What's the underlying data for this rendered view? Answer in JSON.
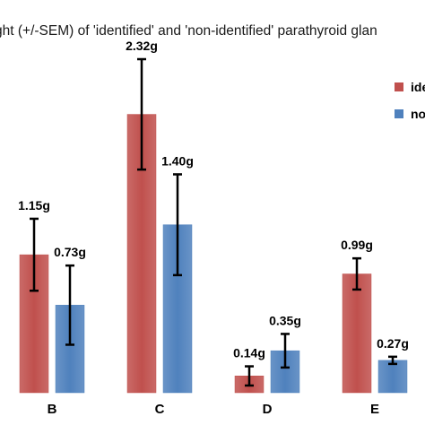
{
  "chart_data": {
    "type": "bar",
    "title": "ght (+/-SEM) of 'identified' and 'non-identified' parathyroid glan",
    "categories": [
      "B",
      "C",
      "D",
      "E"
    ],
    "series": [
      {
        "name": "ide",
        "color": "#c0504d",
        "values": [
          1.15,
          2.32,
          0.14,
          0.99
        ],
        "sem": [
          0.3,
          0.46,
          0.08,
          0.13
        ],
        "labels": [
          "1.15g",
          "2.32g",
          "0.14g",
          "0.99g"
        ]
      },
      {
        "name": "no",
        "color": "#4f81bd",
        "values": [
          0.73,
          1.4,
          0.35,
          0.27
        ],
        "sem": [
          0.33,
          0.42,
          0.14,
          0.03
        ],
        "labels": [
          "0.73g",
          "1.40g",
          "0.35g",
          "0.27g"
        ]
      }
    ],
    "ylim": [
      0,
      2.78
    ],
    "grid": false,
    "legend": "top-right"
  }
}
